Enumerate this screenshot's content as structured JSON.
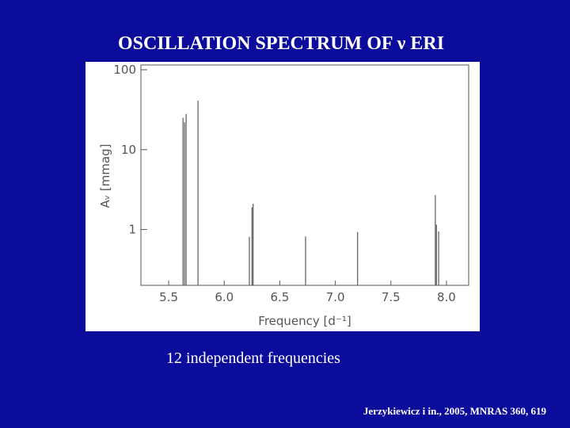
{
  "chart_data": {
    "type": "stem",
    "title": "OSCILLATION SPECTRUM OF ν ERI",
    "x_label": "Frequency [d⁻¹]",
    "y_label": "Aᵥ [mmag]",
    "x": [
      5.629,
      5.643,
      5.657,
      5.764,
      6.226,
      6.25,
      6.26,
      6.732,
      7.2,
      7.9,
      7.91,
      7.93
    ],
    "values": [
      25,
      22,
      28,
      41,
      0.81,
      1.9,
      2.1,
      0.82,
      0.93,
      2.7,
      1.15,
      0.95
    ],
    "color": "#666666",
    "log_y": true,
    "xlim": [
      5.25,
      8.2
    ],
    "ylim": [
      0.2,
      100
    ],
    "xticks": [
      {
        "value": 5.5,
        "label": "5.5"
      },
      {
        "value": 6.0,
        "label": "6.0"
      },
      {
        "value": 6.5,
        "label": "6.5"
      },
      {
        "value": 7.0,
        "label": "7.0"
      },
      {
        "value": 7.5,
        "label": "7.5"
      },
      {
        "value": 8.0,
        "label": "8.0"
      }
    ],
    "yticks": [
      1,
      10,
      100
    ]
  },
  "caption": "12 independent frequencies",
  "citation": "Jerzykiewicz i in., 2005,  MNRAS 360, 619"
}
